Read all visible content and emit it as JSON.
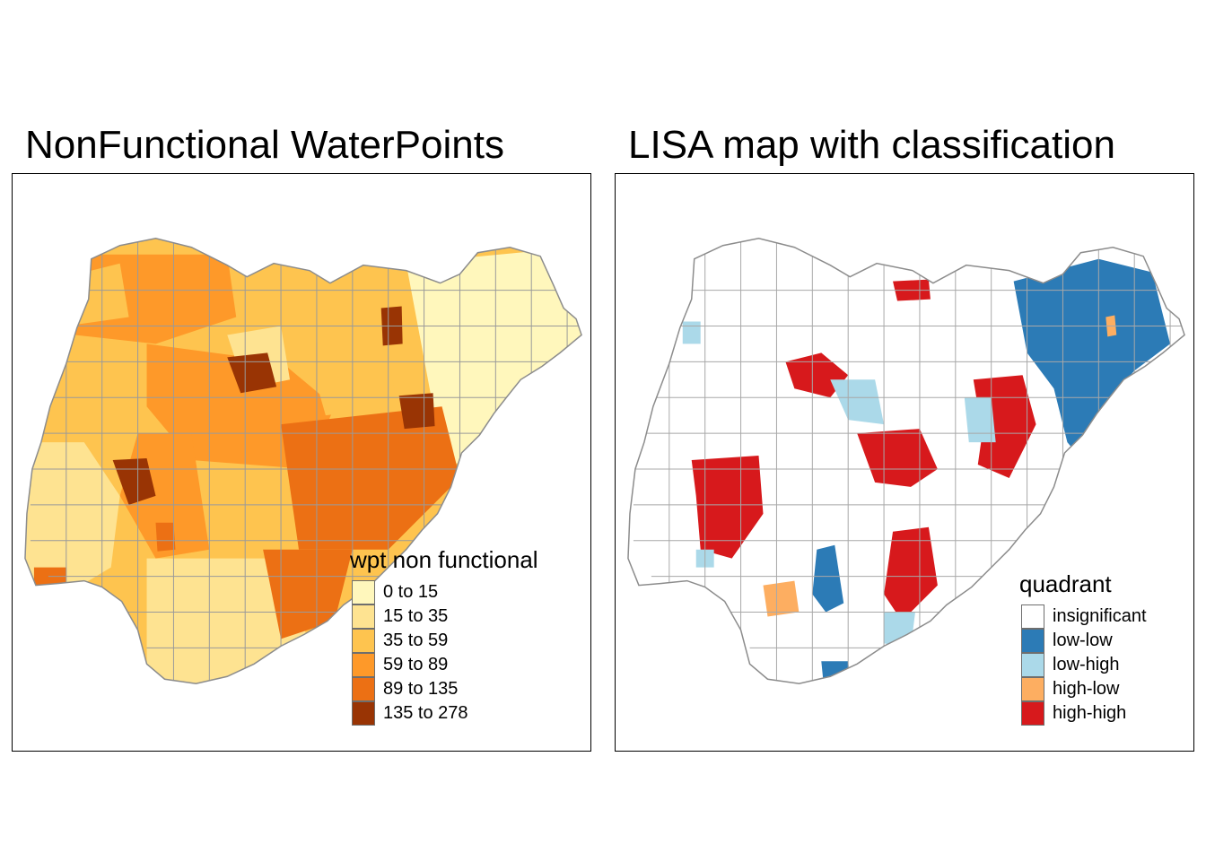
{
  "left_panel": {
    "title": "NonFunctional WaterPoints",
    "legend": {
      "title": "wpt non functional",
      "items": [
        {
          "label": "0 to 15",
          "color": "#FFF7BC"
        },
        {
          "label": "15 to 35",
          "color": "#FEE391"
        },
        {
          "label": "35 to 59",
          "color": "#FEC44F"
        },
        {
          "label": "59 to 89",
          "color": "#FE9929"
        },
        {
          "label": "89 to 135",
          "color": "#EC7014"
        },
        {
          "label": "135 to 278",
          "color": "#993404"
        }
      ]
    }
  },
  "right_panel": {
    "title": "LISA map with classification",
    "legend": {
      "title": "quadrant",
      "items": [
        {
          "label": "insignificant",
          "color": "#FFFFFF"
        },
        {
          "label": "low-low",
          "color": "#2C7BB6"
        },
        {
          "label": "low-high",
          "color": "#ABD9E9"
        },
        {
          "label": "high-low",
          "color": "#FDAE61"
        },
        {
          "label": "high-high",
          "color": "#D7191C"
        }
      ]
    }
  },
  "map_style": {
    "border_color": "#8c8c8c",
    "frame_color": "#000000"
  }
}
